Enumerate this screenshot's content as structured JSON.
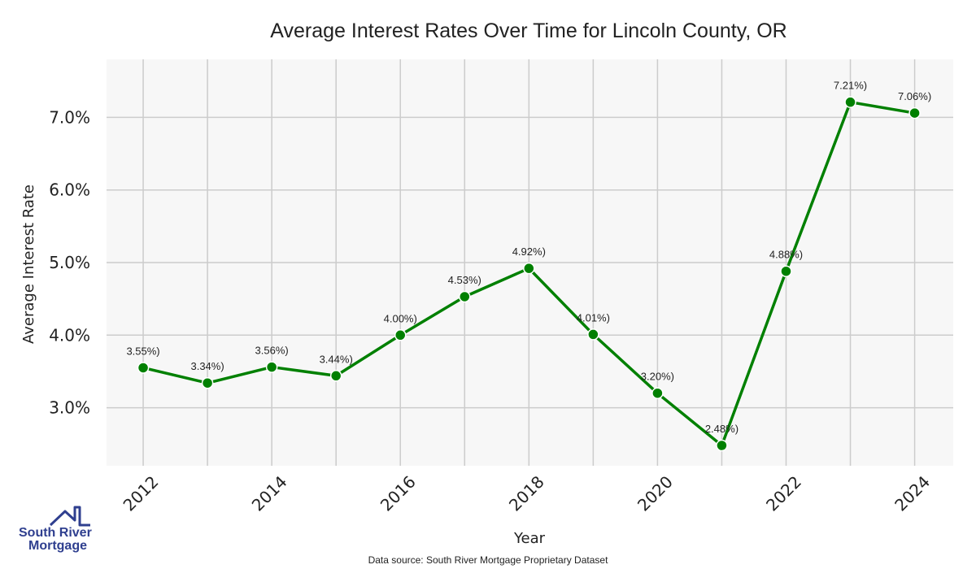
{
  "chart_data": {
    "type": "line",
    "title": "Average Interest Rates Over Time for Lincoln County, OR",
    "xlabel": "Year",
    "ylabel": "Average Interest Rate",
    "x": [
      2012,
      2013,
      2014,
      2015,
      2016,
      2017,
      2018,
      2019,
      2020,
      2021,
      2022,
      2023,
      2024
    ],
    "values": [
      3.55,
      3.34,
      3.56,
      3.44,
      4.0,
      4.53,
      4.92,
      4.01,
      3.2,
      2.48,
      4.88,
      7.21,
      7.06
    ],
    "data_labels": [
      "3.55%)",
      "3.34%)",
      "3.56%)",
      "3.44%)",
      "4.00%)",
      "4.53%)",
      "4.92%)",
      "4.01%)",
      "3.20%)",
      "2.48%)",
      "4.88%)",
      "7.21%)",
      "7.06%)"
    ],
    "xticks": [
      "2012",
      "2014",
      "2016",
      "2018",
      "2020",
      "2022",
      "2024"
    ],
    "xtick_values": [
      2012,
      2014,
      2016,
      2018,
      2020,
      2022,
      2024
    ],
    "yticks": [
      "3.0%",
      "4.0%",
      "5.0%",
      "6.0%",
      "7.0%"
    ],
    "ytick_values": [
      3,
      4,
      5,
      6,
      7
    ],
    "xlim": [
      2011.43,
      2024.6
    ],
    "ylim": [
      2.2,
      7.8
    ],
    "grid": true,
    "line_color": "#008000",
    "background_color": "#f7f7f7",
    "grid_color": "#cccccc"
  },
  "footer": {
    "source": "Data source: South River Mortgage Proprietary Dataset",
    "logo_line1": "South River",
    "logo_line2": "Mortgage",
    "logo_color": "#2f3f8f"
  }
}
